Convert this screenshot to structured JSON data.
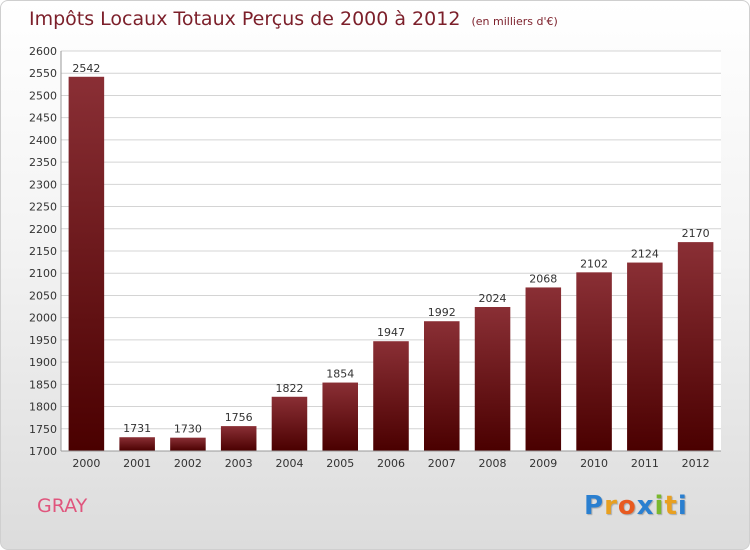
{
  "chart_data": {
    "type": "bar",
    "title": "Impôts Locaux Totaux Perçus de 2000 à 2012",
    "subtitle": "(en milliers d'€)",
    "categories": [
      "2000",
      "2001",
      "2002",
      "2003",
      "2004",
      "2005",
      "2006",
      "2007",
      "2008",
      "2009",
      "2010",
      "2011",
      "2012"
    ],
    "values": [
      2542,
      1731,
      1730,
      1756,
      1822,
      1854,
      1947,
      1992,
      2024,
      2068,
      2102,
      2124,
      2170
    ],
    "ylim": [
      1700,
      2600
    ],
    "ytick_step": 50,
    "grid": true,
    "bar_color_top": "#8a2f35",
    "bar_color_bottom": "#4a0000"
  },
  "location": "GRAY",
  "brand": {
    "letters": [
      "P",
      "r",
      "o",
      "x",
      "i",
      "t",
      "i"
    ],
    "colors": [
      "#2a7fd0",
      "#e8a020",
      "#e85a20",
      "#2a7fd0",
      "#7ab82e",
      "#e8a020",
      "#2a7fd0"
    ]
  }
}
